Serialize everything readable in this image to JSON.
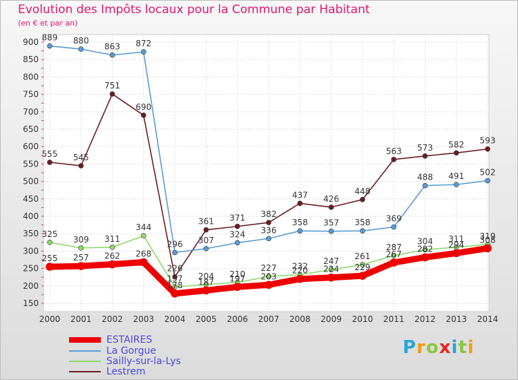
{
  "title": "Evolution des Impôts locaux pour la Commune par Habitant",
  "subtitle": "(en € et par an)",
  "brand": {
    "letters": [
      "P",
      "r",
      "o",
      "x",
      "i",
      "t",
      "i"
    ],
    "colors": [
      "#29a3d9",
      "#f39c12",
      "#8cc63f",
      "#e8262a",
      "#29a3d9",
      "#8cc63f",
      "#f39c12"
    ]
  },
  "chart_data": {
    "type": "line",
    "title": "Evolution des Impôts locaux pour la Commune par Habitant",
    "ylabel": "(en € et par an)",
    "xlabel": "",
    "x": [
      2000,
      2001,
      2002,
      2003,
      2004,
      2005,
      2006,
      2007,
      2008,
      2009,
      2010,
      2011,
      2012,
      2013,
      2014
    ],
    "ylim": [
      150,
      900
    ],
    "yticks": [
      150,
      200,
      250,
      300,
      350,
      400,
      450,
      500,
      550,
      600,
      650,
      700,
      750,
      800,
      850,
      900
    ],
    "grid": true,
    "series": [
      {
        "name": "ESTAIRES",
        "color": "#ee0000",
        "values": [
          255,
          257,
          262,
          268,
          178,
          187,
          197,
          203,
          220,
          224,
          229,
          267,
          282,
          294,
          308
        ]
      },
      {
        "name": "La Gorgue",
        "color": "#5b9bd5",
        "values": [
          889,
          880,
          863,
          872,
          296,
          307,
          324,
          336,
          358,
          357,
          358,
          369,
          488,
          491,
          502
        ]
      },
      {
        "name": "Sailly-sur-la-Lys",
        "color": "#8fd96a",
        "values": [
          325,
          309,
          311,
          344,
          197,
          204,
          210,
          227,
          232,
          247,
          261,
          287,
          304,
          311,
          319
        ]
      },
      {
        "name": "Lestrem",
        "color": "#6b1d22",
        "values": [
          555,
          545,
          751,
          690,
          226,
          361,
          371,
          382,
          437,
          426,
          448,
          563,
          573,
          582,
          593
        ]
      }
    ]
  }
}
